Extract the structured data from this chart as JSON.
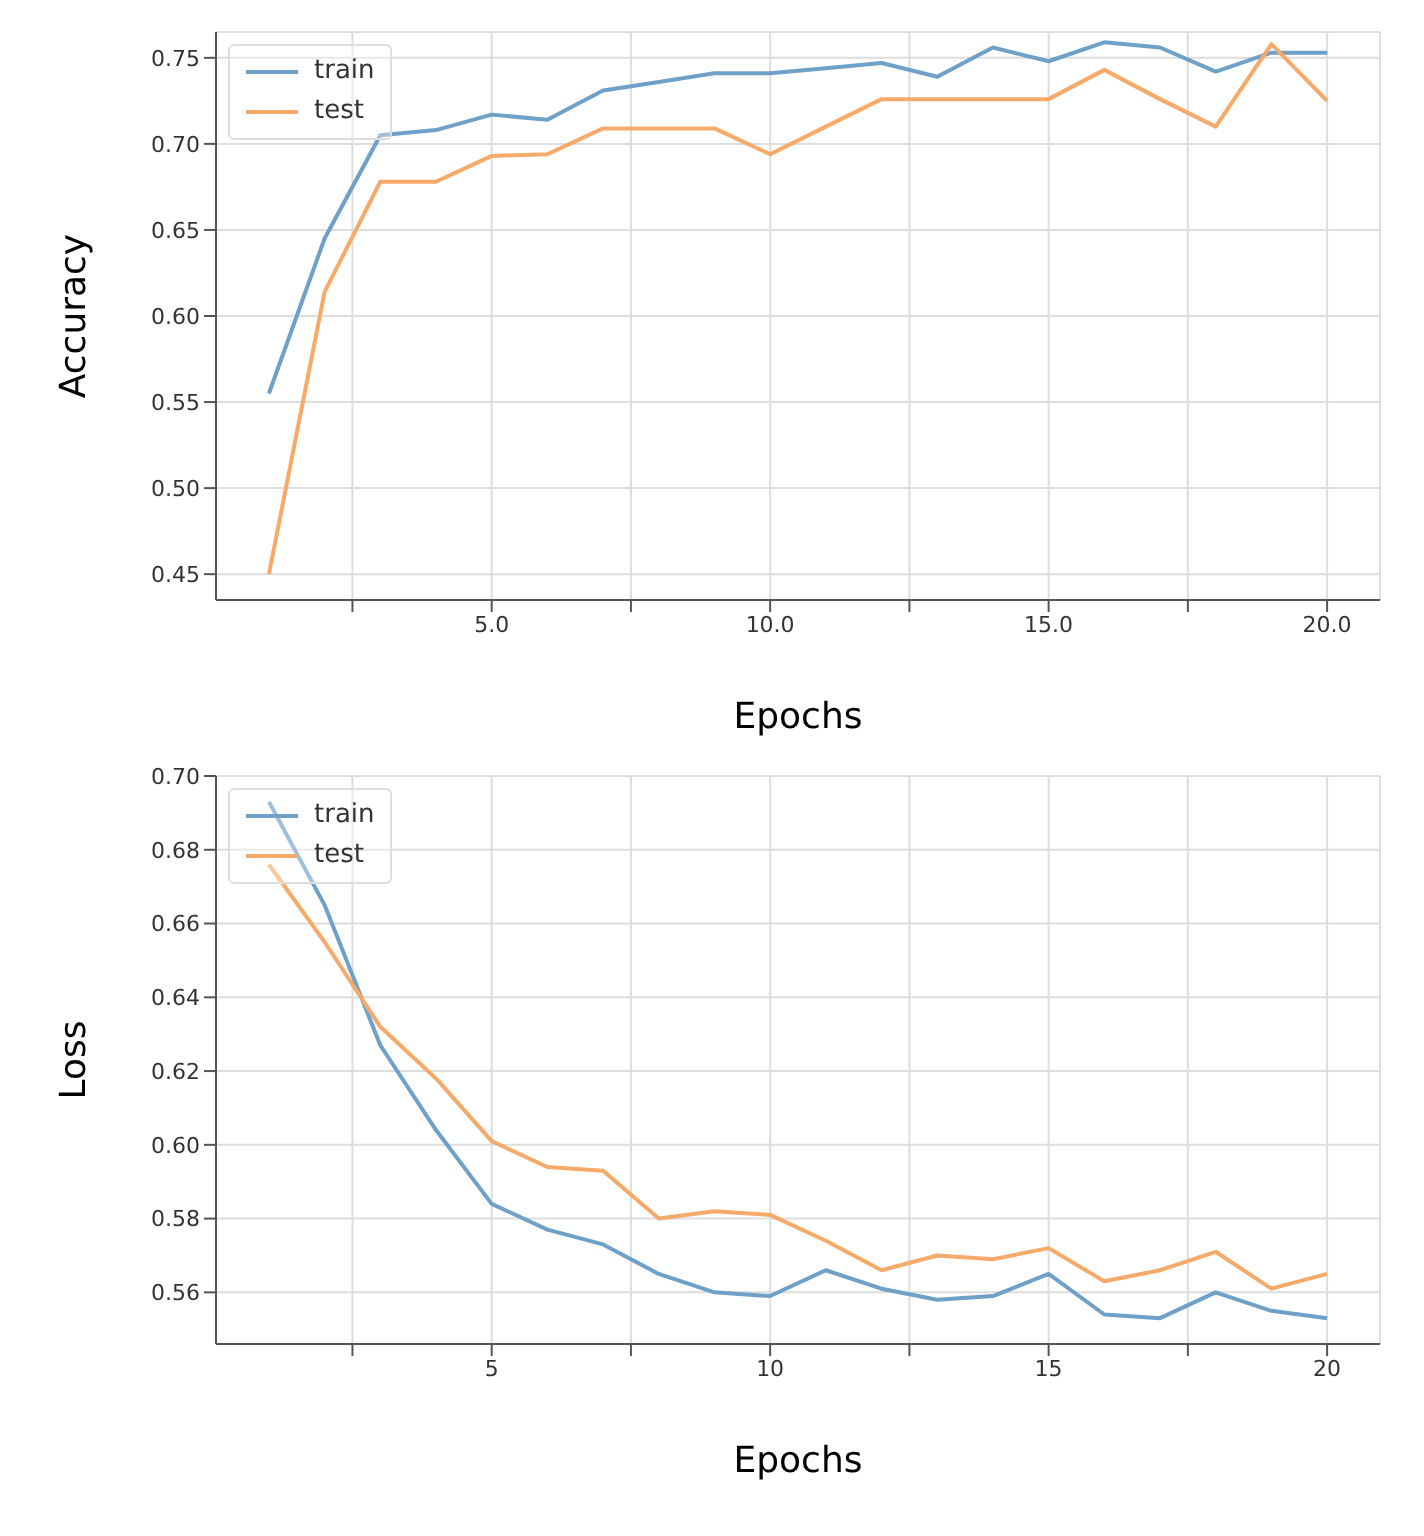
{
  "chart_data": [
    {
      "type": "line",
      "ylabel": "Accuracy",
      "xlabel": "Epochs",
      "x": [
        1,
        2,
        3,
        4,
        5,
        6,
        7,
        8,
        9,
        10,
        11,
        12,
        13,
        14,
        15,
        16,
        17,
        18,
        19,
        20
      ],
      "series": [
        {
          "name": "train",
          "color": "#6fa0c8",
          "values": [
            0.555,
            0.645,
            0.705,
            0.708,
            0.717,
            0.714,
            0.731,
            0.736,
            0.741,
            0.741,
            0.744,
            0.747,
            0.739,
            0.756,
            0.748,
            0.759,
            0.756,
            0.742,
            0.753,
            0.753
          ]
        },
        {
          "name": "test",
          "color": "#f5aa6a",
          "values": [
            0.45,
            0.614,
            0.678,
            0.678,
            0.693,
            0.694,
            0.709,
            0.709,
            0.709,
            0.694,
            0.71,
            0.726,
            0.726,
            0.726,
            0.726,
            0.743,
            0.726,
            0.71,
            0.758,
            0.725
          ]
        }
      ],
      "xlim": [
        0.05,
        20.95
      ],
      "xticks": [
        {
          "value": 2.5,
          "label": null
        },
        {
          "value": 5,
          "label": "5.0"
        },
        {
          "value": 7.5,
          "label": null
        },
        {
          "value": 10,
          "label": "10.0"
        },
        {
          "value": 12.5,
          "label": null
        },
        {
          "value": 15,
          "label": "15.0"
        },
        {
          "value": 17.5,
          "label": null
        },
        {
          "value": 20,
          "label": "20.0"
        }
      ],
      "ylim": [
        0.435,
        0.765
      ],
      "yticks": [
        {
          "value": 0.45,
          "label": "0.45"
        },
        {
          "value": 0.5,
          "label": "0.50"
        },
        {
          "value": 0.55,
          "label": "0.55"
        },
        {
          "value": 0.6,
          "label": "0.60"
        },
        {
          "value": 0.65,
          "label": "0.65"
        },
        {
          "value": 0.7,
          "label": "0.70"
        },
        {
          "value": 0.75,
          "label": "0.75"
        }
      ],
      "grid": true,
      "legend": "top left",
      "marker": "none",
      "line_style": "solid"
    },
    {
      "type": "line",
      "ylabel": "Loss",
      "xlabel": "Epochs",
      "x": [
        1,
        2,
        3,
        4,
        5,
        6,
        7,
        8,
        9,
        10,
        11,
        12,
        13,
        14,
        15,
        16,
        17,
        18,
        19,
        20
      ],
      "series": [
        {
          "name": "train",
          "color": "#6fa0c8",
          "values": [
            0.693,
            0.665,
            0.627,
            0.604,
            0.584,
            0.577,
            0.573,
            0.565,
            0.56,
            0.559,
            0.566,
            0.561,
            0.558,
            0.559,
            0.565,
            0.554,
            0.553,
            0.56,
            0.555,
            0.553
          ]
        },
        {
          "name": "test",
          "color": "#f5aa6a",
          "values": [
            0.676,
            0.655,
            0.632,
            0.618,
            0.601,
            0.594,
            0.593,
            0.58,
            0.582,
            0.581,
            0.574,
            0.566,
            0.57,
            0.569,
            0.572,
            0.563,
            0.566,
            0.571,
            0.561,
            0.565
          ]
        }
      ],
      "xlim": [
        0.05,
        20.95
      ],
      "xticks": [
        {
          "value": 2.5,
          "label": null
        },
        5,
        {
          "value": 7.5,
          "label": null
        },
        10,
        {
          "value": 12.5,
          "label": null
        },
        15,
        {
          "value": 17.5,
          "label": null
        },
        20
      ],
      "ylim": [
        0.546,
        0.7
      ],
      "yticks": [
        {
          "value": 0.56,
          "label": "0.56"
        },
        {
          "value": 0.58,
          "label": "0.58"
        },
        {
          "value": 0.6,
          "label": "0.60"
        },
        {
          "value": 0.62,
          "label": "0.62"
        },
        {
          "value": 0.64,
          "label": "0.64"
        },
        {
          "value": 0.66,
          "label": "0.66"
        },
        {
          "value": 0.68,
          "label": "0.68"
        },
        {
          "value": 0.7,
          "label": "0.70"
        }
      ],
      "grid": true,
      "legend": "top left",
      "marker": "none",
      "line_style": "solid"
    }
  ]
}
